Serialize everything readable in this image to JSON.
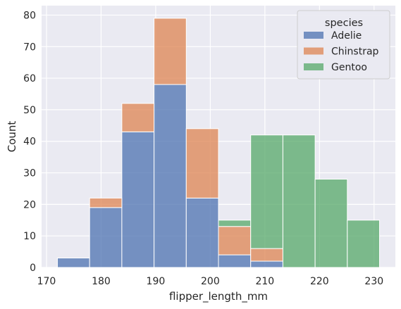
{
  "chart_data": {
    "type": "bar",
    "stacked": true,
    "histogram": true,
    "xlabel": "flipper_length_mm",
    "ylabel": "Count",
    "xlim": [
      169.1,
      233.9
    ],
    "ylim": [
      0,
      83
    ],
    "xticks": [
      170,
      180,
      190,
      200,
      210,
      220,
      230
    ],
    "yticks": [
      0,
      10,
      20,
      30,
      40,
      50,
      60,
      70,
      80
    ],
    "grid": true,
    "bin_edges": [
      172,
      177.9,
      183.8,
      189.7,
      195.6,
      201.5,
      207.4,
      213.3,
      219.2,
      225.1,
      231
    ],
    "legend": {
      "title": "species",
      "placement": "top-right"
    },
    "series": [
      {
        "name": "Adelie",
        "color": "#4c72b0",
        "values": [
          3,
          19,
          43,
          58,
          22,
          4,
          2,
          0,
          0,
          0
        ]
      },
      {
        "name": "Chinstrap",
        "color": "#dd8452",
        "values": [
          0,
          3,
          9,
          21,
          22,
          9,
          4,
          0,
          0,
          0
        ]
      },
      {
        "name": "Gentoo",
        "color": "#55a868",
        "values": [
          0,
          0,
          0,
          0,
          0,
          2,
          36,
          42,
          28,
          15
        ]
      }
    ]
  },
  "colors": {
    "plot_background": "#eaeaf2",
    "grid": "#ffffff",
    "text": "#262626"
  }
}
